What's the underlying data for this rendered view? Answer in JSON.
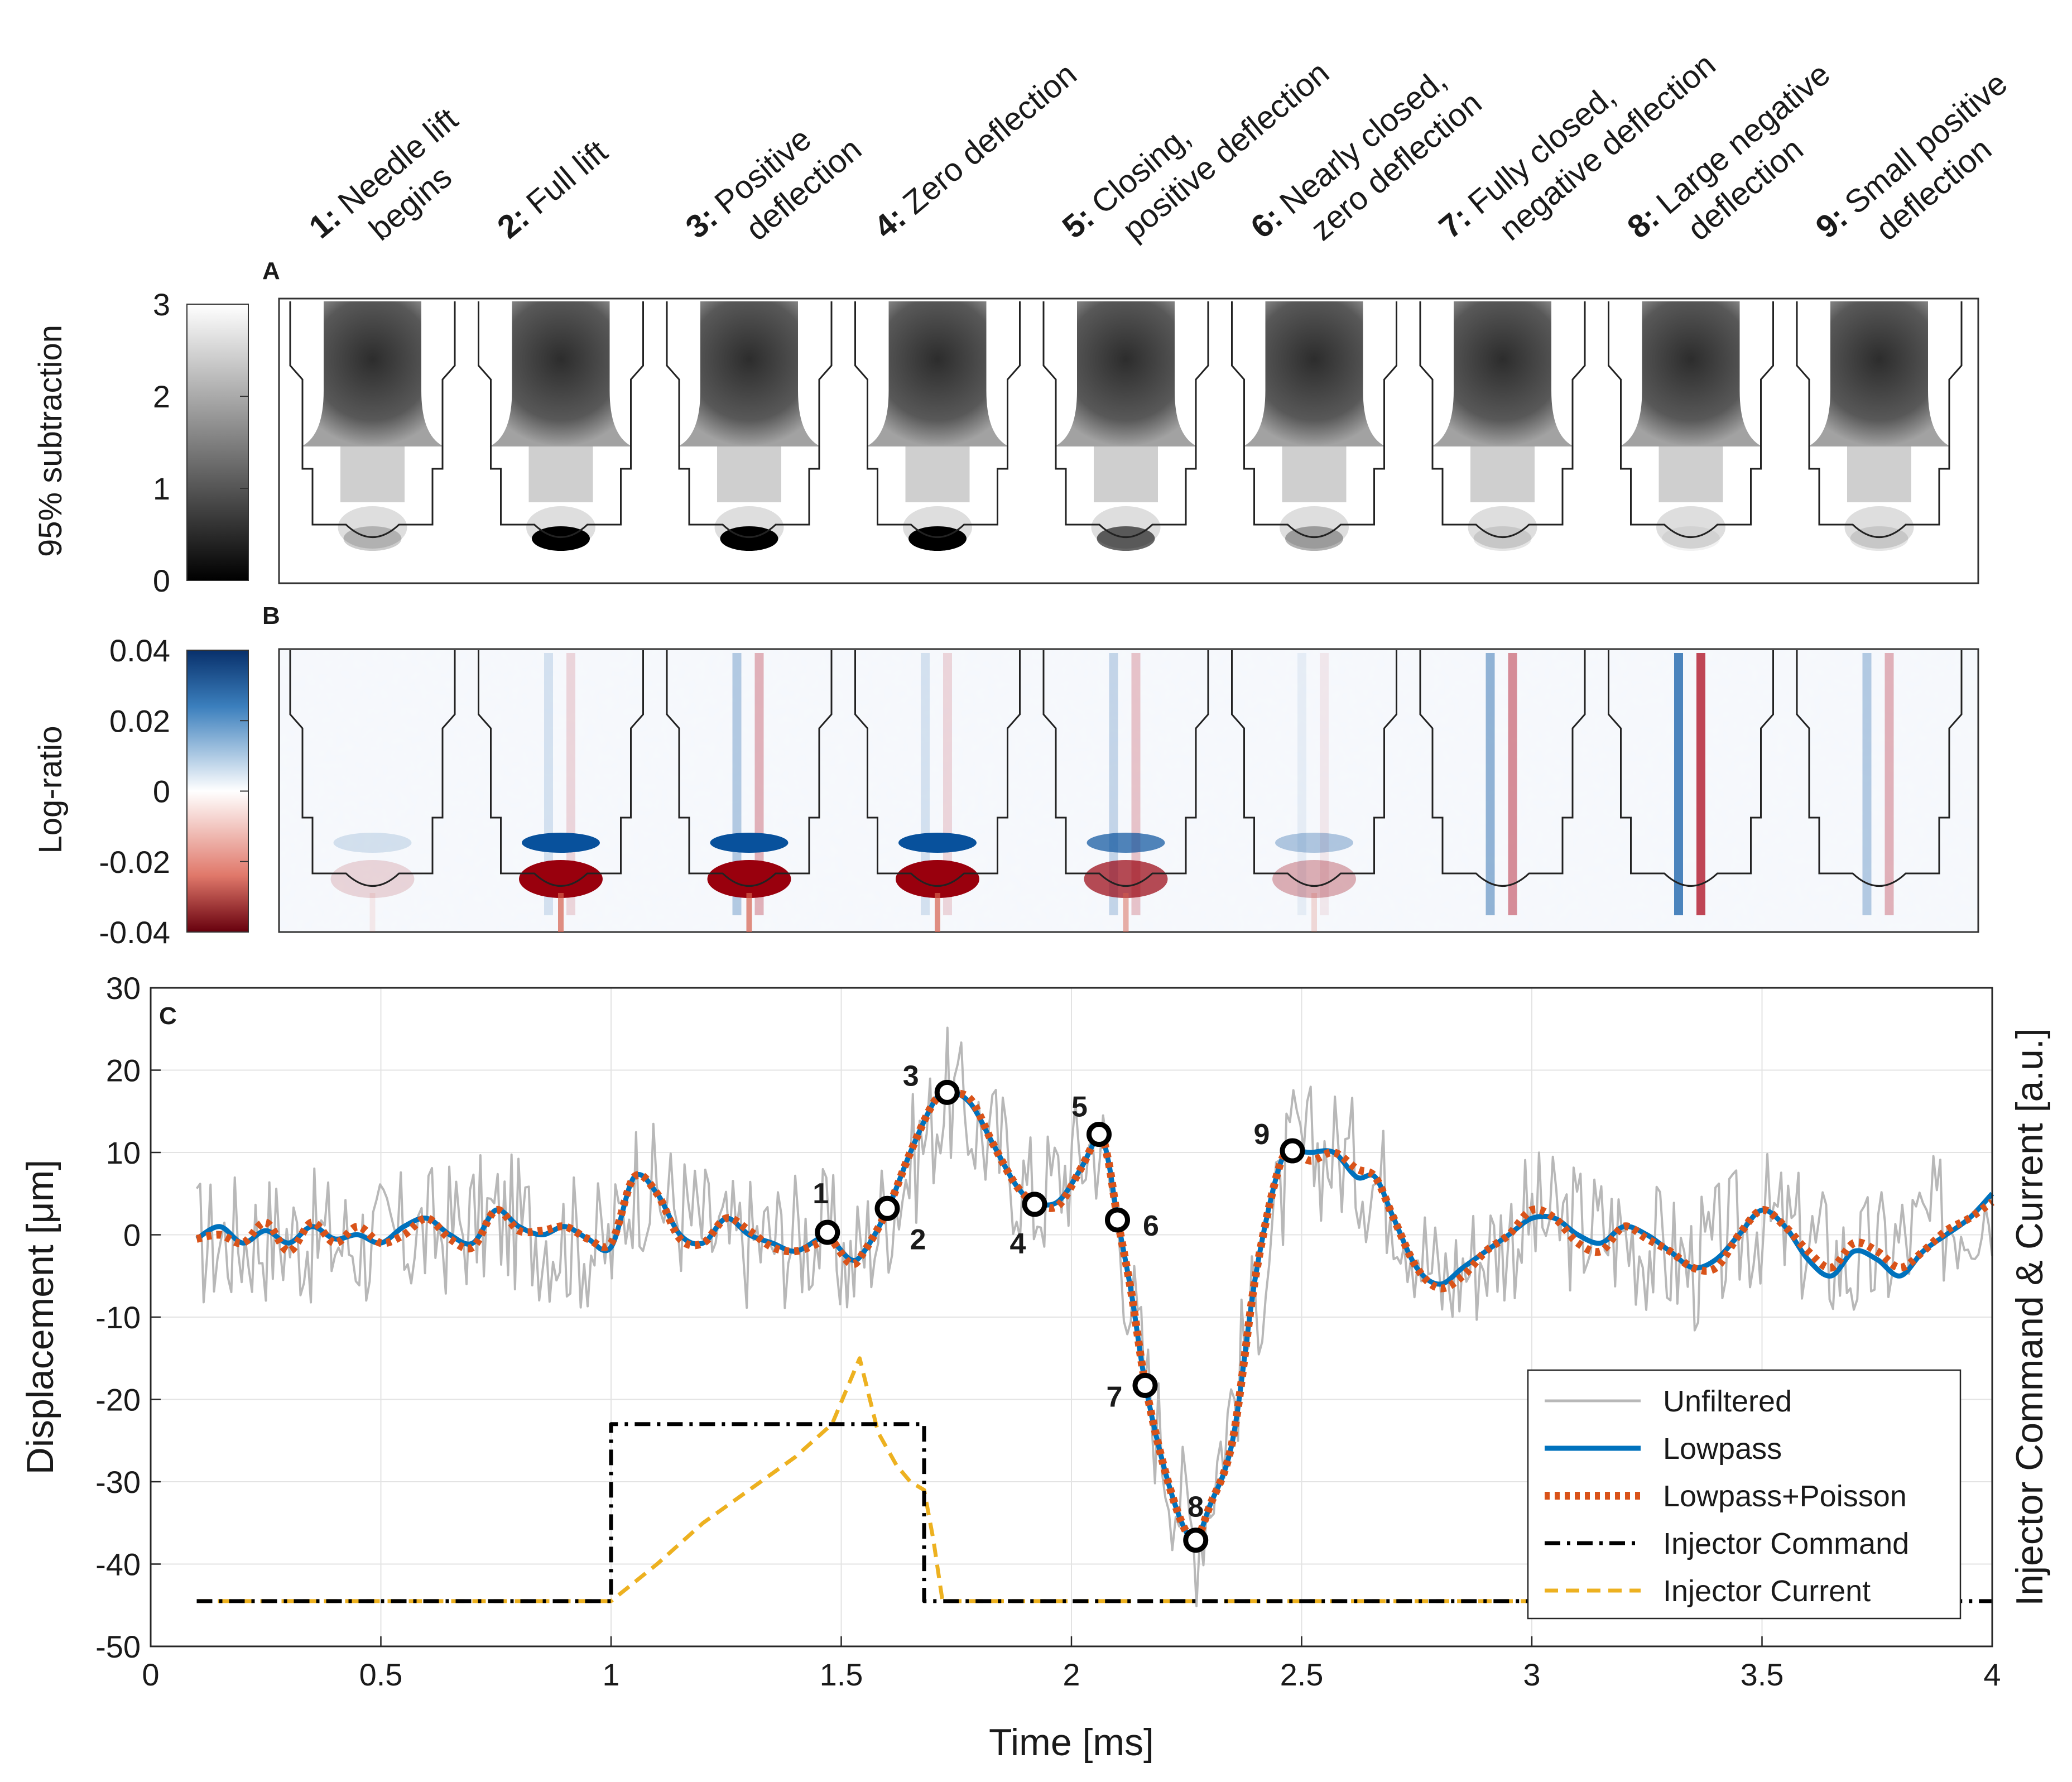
{
  "frames": [
    {
      "num": "1:",
      "line1": "Needle lift",
      "line2": "begins"
    },
    {
      "num": "2:",
      "line1": "Full lift",
      "line2": ""
    },
    {
      "num": "3:",
      "line1": "Positive",
      "line2": "deflection"
    },
    {
      "num": "4:",
      "line1": "Zero deflection",
      "line2": ""
    },
    {
      "num": "5:",
      "line1": "Closing,",
      "line2": "positive deflection"
    },
    {
      "num": "6:",
      "line1": "Nearly closed,",
      "line2": "zero deflection"
    },
    {
      "num": "7:",
      "line1": "Fully closed,",
      "line2": "negative deflection"
    },
    {
      "num": "8:",
      "line1": "Large negative",
      "line2": "deflection"
    },
    {
      "num": "9:",
      "line1": "Small positive",
      "line2": "deflection"
    }
  ],
  "panel_a": {
    "label": "A",
    "colorbar_label": "95% subtraction",
    "ticks": [
      "3",
      "2",
      "1",
      "0"
    ],
    "colors": {
      "low": "#000000",
      "high": "#ffffff"
    }
  },
  "panel_b": {
    "label": "B",
    "colorbar_label": "Log-ratio",
    "ticks": [
      "0.04",
      "0.02",
      "0",
      "-0.02",
      "-0.04"
    ],
    "colors": {
      "pos": "#08306b",
      "zero": "#ffffff",
      "neg": "#67000d"
    }
  },
  "chart_data": {
    "type": "line",
    "panel_label": "C",
    "xlabel": "Time [ms]",
    "ylabel": "Displacement [μm]",
    "ylabel_right": "Injector Command & Current [a.u.]",
    "xlim": [
      0,
      4
    ],
    "ylim": [
      -50,
      30
    ],
    "x_ticks": [
      0,
      0.5,
      1,
      1.5,
      2,
      2.5,
      3,
      3.5,
      4
    ],
    "x_tick_labels": [
      "0",
      "0.5",
      "1",
      "1.5",
      "2",
      "2.5",
      "3",
      "3.5",
      "4"
    ],
    "y_ticks": [
      30,
      20,
      10,
      0,
      -10,
      -20,
      -30,
      -40,
      -50
    ],
    "y_tick_labels": [
      "30",
      "20",
      "10",
      "0",
      "-10",
      "-20",
      "-30",
      "-40",
      "-50"
    ],
    "grid": true,
    "legend_position": "bottom-right",
    "series": [
      {
        "name": "Unfiltered",
        "color": "#b8b8b8",
        "style": "solid",
        "x": [
          0.1,
          0.25,
          0.5,
          0.75,
          1.0,
          1.05,
          1.25,
          1.47,
          1.52,
          1.6,
          1.73,
          1.85,
          1.92,
          2.06,
          2.1,
          2.16,
          2.22,
          2.27,
          2.35,
          2.48,
          2.58,
          2.7,
          2.8,
          3.0,
          3.2,
          3.35,
          3.5,
          3.7,
          4.0
        ],
        "y": [
          -1,
          0,
          -1,
          2,
          -2,
          7,
          -1,
          0,
          -4,
          3,
          17,
          10,
          4,
          12,
          2,
          -18,
          -30,
          -37,
          -20,
          10,
          10,
          5,
          -6,
          2,
          0,
          -4,
          2,
          -4,
          5
        ]
      },
      {
        "name": "Lowpass",
        "color": "#0072bd",
        "style": "solid",
        "x": [
          0.1,
          0.15,
          0.2,
          0.25,
          0.3,
          0.35,
          0.4,
          0.45,
          0.5,
          0.55,
          0.6,
          0.65,
          0.7,
          0.75,
          0.8,
          0.85,
          0.9,
          0.95,
          1.0,
          1.05,
          1.1,
          1.15,
          1.2,
          1.25,
          1.3,
          1.35,
          1.4,
          1.45,
          1.47,
          1.52,
          1.55,
          1.6,
          1.65,
          1.7,
          1.73,
          1.78,
          1.83,
          1.88,
          1.92,
          1.97,
          2.02,
          2.06,
          2.08,
          2.1,
          2.13,
          2.16,
          2.2,
          2.24,
          2.27,
          2.3,
          2.35,
          2.4,
          2.45,
          2.48,
          2.52,
          2.57,
          2.62,
          2.66,
          2.7,
          2.75,
          2.8,
          2.85,
          2.9,
          2.95,
          3.0,
          3.05,
          3.1,
          3.15,
          3.2,
          3.25,
          3.3,
          3.35,
          3.4,
          3.45,
          3.5,
          3.55,
          3.6,
          3.65,
          3.7,
          3.75,
          3.8,
          3.85,
          3.9,
          3.95,
          4.0
        ],
        "y": [
          -0.5,
          1,
          -1,
          0.5,
          -1,
          1,
          -0.5,
          0,
          -1,
          1,
          2,
          0,
          -1,
          3,
          1,
          0,
          1,
          -0.5,
          -1.5,
          7,
          5,
          0,
          -1,
          2,
          0,
          -1,
          -2,
          -0.5,
          0,
          -3,
          -2,
          3,
          10,
          16,
          17.5,
          16,
          11,
          6,
          4,
          4,
          8,
          12,
          9,
          2,
          -7,
          -18,
          -28,
          -35,
          -37,
          -33,
          -25,
          -5,
          8,
          10,
          10,
          10,
          7,
          7,
          2,
          -4,
          -6,
          -4,
          -2,
          0,
          2,
          2,
          0,
          -1,
          1,
          0,
          -2,
          -4,
          -3,
          0,
          3,
          1,
          -3,
          -5,
          -2,
          -3,
          -5,
          -2,
          0,
          2,
          5
        ]
      },
      {
        "name": "Lowpass+Poisson",
        "color": "#d95319",
        "style": "dotted",
        "x": [
          0.1,
          0.15,
          0.2,
          0.25,
          0.3,
          0.35,
          0.4,
          0.45,
          0.5,
          0.55,
          0.6,
          0.65,
          0.7,
          0.75,
          0.8,
          0.85,
          0.9,
          0.95,
          1.0,
          1.05,
          1.1,
          1.15,
          1.2,
          1.25,
          1.3,
          1.35,
          1.4,
          1.45,
          1.47,
          1.52,
          1.55,
          1.6,
          1.65,
          1.7,
          1.73,
          1.78,
          1.83,
          1.88,
          1.92,
          1.97,
          2.02,
          2.06,
          2.08,
          2.1,
          2.13,
          2.16,
          2.2,
          2.24,
          2.27,
          2.3,
          2.35,
          2.4,
          2.45,
          2.48,
          2.52,
          2.57,
          2.62,
          2.66,
          2.7,
          2.75,
          2.8,
          2.85,
          2.9,
          2.95,
          3.0,
          3.05,
          3.1,
          3.15,
          3.2,
          3.25,
          3.3,
          3.35,
          3.4,
          3.45,
          3.5,
          3.55,
          3.6,
          3.65,
          3.7,
          3.75,
          3.8,
          3.85,
          3.9,
          3.95,
          4.0
        ],
        "y": [
          -0.5,
          0,
          -1,
          1.5,
          -2,
          1.5,
          -1,
          1,
          -1,
          0,
          2,
          -0.5,
          -1.5,
          3,
          0.5,
          0.5,
          1,
          -0.5,
          -1,
          7,
          5,
          -0.5,
          -1,
          2,
          0.5,
          -1.5,
          -2,
          -1,
          0,
          -3.5,
          -2,
          3,
          10,
          16,
          17,
          16.5,
          11,
          6,
          4,
          3.5,
          8,
          12,
          9,
          2,
          -7,
          -18,
          -28,
          -35,
          -37,
          -33,
          -25,
          -5,
          8,
          10,
          9,
          10,
          8,
          7,
          2,
          -4,
          -6.5,
          -5,
          -2,
          0,
          3,
          2,
          -1,
          -2,
          1,
          -0.5,
          -2,
          -4,
          -4,
          0,
          3,
          1,
          -2,
          -4,
          -1,
          -2,
          -4,
          -2,
          0.5,
          2,
          4
        ]
      },
      {
        "name": "Injector Command",
        "color": "#000000",
        "style": "dashdot",
        "x": [
          0.1,
          1.0,
          1.0,
          1.68,
          1.68,
          4.0
        ],
        "y": [
          -44.5,
          -44.5,
          -23,
          -23,
          -44.5,
          -44.5
        ]
      },
      {
        "name": "Injector Current",
        "color": "#edb120",
        "style": "dashed",
        "x": [
          0.1,
          1.0,
          1.1,
          1.2,
          1.3,
          1.4,
          1.48,
          1.54,
          1.58,
          1.62,
          1.65,
          1.68,
          1.7,
          1.72,
          3.0
        ],
        "y": [
          -44.5,
          -44.5,
          -40,
          -35,
          -31,
          -27,
          -23,
          -15,
          -24,
          -28,
          -30,
          -31,
          -37,
          -44.5,
          -44.5
        ]
      }
    ],
    "markers": [
      {
        "label": "1",
        "x": 1.47,
        "y": 0.3
      },
      {
        "label": "2",
        "x": 1.6,
        "y": 3.2
      },
      {
        "label": "3",
        "x": 1.73,
        "y": 17.3
      },
      {
        "label": "4",
        "x": 1.92,
        "y": 3.7
      },
      {
        "label": "5",
        "x": 2.06,
        "y": 12.2
      },
      {
        "label": "6",
        "x": 2.1,
        "y": 1.8
      },
      {
        "label": "7",
        "x": 2.16,
        "y": -18.3
      },
      {
        "label": "8",
        "x": 2.27,
        "y": -37.1
      },
      {
        "label": "9",
        "x": 2.48,
        "y": 10.2
      }
    ]
  }
}
